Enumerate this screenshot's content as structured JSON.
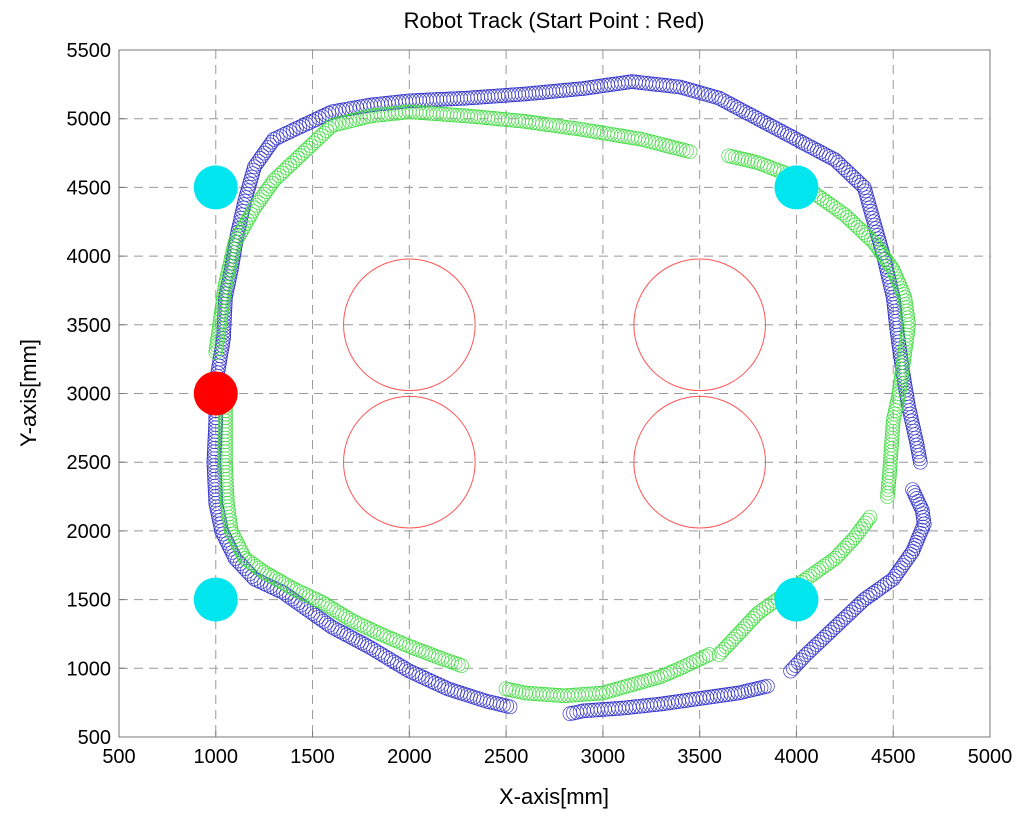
{
  "chart_data": {
    "type": "scatter",
    "title": "Robot Track (Start Point : Red)",
    "xlabel": "X-axis[mm]",
    "ylabel": "Y-axis[mm]",
    "xlim": [
      500,
      5000
    ],
    "ylim": [
      500,
      5500
    ],
    "xticks": [
      "500",
      "1000",
      "1500",
      "2000",
      "2500",
      "3000",
      "3500",
      "4000",
      "4500",
      "5000"
    ],
    "yticks": [
      "500",
      "1000",
      "1500",
      "2000",
      "2500",
      "3000",
      "3500",
      "4000",
      "4500",
      "5000",
      "5500"
    ],
    "grid": true,
    "colors": {
      "blue": "#3333cc",
      "green": "#44dd44",
      "obstacle": "#ff5555",
      "landmark": "#00e5ee",
      "start": "#ff0000"
    },
    "landmarks": [
      {
        "x": 1000,
        "y": 4500
      },
      {
        "x": 4000,
        "y": 4500
      },
      {
        "x": 1000,
        "y": 1500
      },
      {
        "x": 4000,
        "y": 1500
      }
    ],
    "start_point": {
      "x": 1000,
      "y": 3000
    },
    "obstacles": [
      {
        "x": 2000,
        "y": 3500,
        "r": 340
      },
      {
        "x": 3500,
        "y": 3500,
        "r": 340
      },
      {
        "x": 2000,
        "y": 2500,
        "r": 340
      },
      {
        "x": 3500,
        "y": 2500,
        "r": 340
      }
    ],
    "series": [
      {
        "color": "#3333cc",
        "segments": [
          [
            [
              1000,
              3000
            ],
            [
              1010,
              3150
            ],
            [
              1040,
              3400
            ],
            [
              1050,
              3700
            ],
            [
              1080,
              3900
            ],
            [
              1110,
              4150
            ],
            [
              1150,
              4400
            ],
            [
              1200,
              4650
            ],
            [
              1300,
              4850
            ],
            [
              1450,
              4950
            ],
            [
              1600,
              5050
            ],
            [
              1800,
              5100
            ],
            [
              2000,
              5130
            ],
            [
              2300,
              5150
            ],
            [
              2600,
              5180
            ],
            [
              2900,
              5220
            ],
            [
              3150,
              5270
            ],
            [
              3400,
              5230
            ],
            [
              3600,
              5150
            ],
            [
              3800,
              5000
            ],
            [
              4000,
              4850
            ],
            [
              4200,
              4700
            ],
            [
              4350,
              4500
            ],
            [
              4400,
              4250
            ],
            [
              4450,
              4000
            ],
            [
              4500,
              3700
            ],
            [
              4520,
              3450
            ],
            [
              4550,
              3150
            ],
            [
              4580,
              2900
            ],
            [
              4620,
              2650
            ],
            [
              4640,
              2500
            ]
          ],
          [
            [
              4600,
              2300
            ],
            [
              4650,
              2150
            ],
            [
              4660,
              2050
            ],
            [
              4600,
              1850
            ],
            [
              4500,
              1650
            ],
            [
              4350,
              1500
            ],
            [
              4200,
              1300
            ],
            [
              4050,
              1100
            ],
            [
              3970,
              980
            ]
          ],
          [
            [
              3850,
              870
            ],
            [
              3700,
              820
            ],
            [
              3500,
              780
            ],
            [
              3300,
              740
            ],
            [
              3100,
              710
            ],
            [
              2900,
              690
            ],
            [
              2830,
              670
            ]
          ],
          [
            [
              2520,
              720
            ],
            [
              2400,
              760
            ],
            [
              2200,
              850
            ],
            [
              2000,
              980
            ],
            [
              1800,
              1150
            ],
            [
              1600,
              1300
            ],
            [
              1500,
              1400
            ],
            [
              1350,
              1550
            ],
            [
              1200,
              1650
            ],
            [
              1100,
              1800
            ],
            [
              1030,
              2000
            ],
            [
              1000,
              2200
            ],
            [
              990,
              2500
            ],
            [
              1000,
              2800
            ],
            [
              1000,
              3000
            ]
          ]
        ]
      },
      {
        "color": "#44dd44",
        "segments": [
          [
            [
              1000,
              3300
            ],
            [
              1030,
              3600
            ],
            [
              1050,
              3800
            ],
            [
              1100,
              4100
            ],
            [
              1200,
              4350
            ],
            [
              1300,
              4550
            ],
            [
              1450,
              4750
            ],
            [
              1600,
              4950
            ],
            [
              1800,
              5020
            ],
            [
              2000,
              5050
            ],
            [
              2300,
              5020
            ],
            [
              2600,
              4980
            ],
            [
              2900,
              4920
            ],
            [
              3200,
              4850
            ],
            [
              3450,
              4760
            ]
          ],
          [
            [
              3650,
              4730
            ],
            [
              3800,
              4680
            ],
            [
              3950,
              4600
            ],
            [
              4100,
              4450
            ],
            [
              4250,
              4300
            ],
            [
              4400,
              4100
            ],
            [
              4500,
              3900
            ],
            [
              4560,
              3700
            ],
            [
              4580,
              3500
            ],
            [
              4550,
              3200
            ],
            [
              4530,
              3000
            ],
            [
              4500,
              2800
            ],
            [
              4490,
              2600
            ],
            [
              4480,
              2400
            ],
            [
              4470,
              2250
            ]
          ],
          [
            [
              4380,
              2100
            ],
            [
              4300,
              1950
            ],
            [
              4200,
              1800
            ],
            [
              4100,
              1700
            ],
            [
              3950,
              1550
            ],
            [
              3800,
              1400
            ],
            [
              3700,
              1250
            ],
            [
              3600,
              1100
            ]
          ],
          [
            [
              3550,
              1100
            ],
            [
              3400,
              1000
            ],
            [
              3300,
              940
            ],
            [
              3200,
              900
            ],
            [
              3000,
              820
            ],
            [
              2800,
              800
            ],
            [
              2600,
              820
            ],
            [
              2500,
              850
            ]
          ],
          [
            [
              2270,
              1020
            ],
            [
              2150,
              1080
            ],
            [
              2000,
              1160
            ],
            [
              1850,
              1250
            ],
            [
              1700,
              1350
            ],
            [
              1550,
              1480
            ],
            [
              1400,
              1580
            ],
            [
              1250,
              1700
            ],
            [
              1150,
              1800
            ],
            [
              1080,
              2000
            ],
            [
              1060,
              2200
            ],
            [
              1050,
              2500
            ],
            [
              1050,
              2800
            ],
            [
              1050,
              3050
            ]
          ]
        ]
      }
    ]
  }
}
